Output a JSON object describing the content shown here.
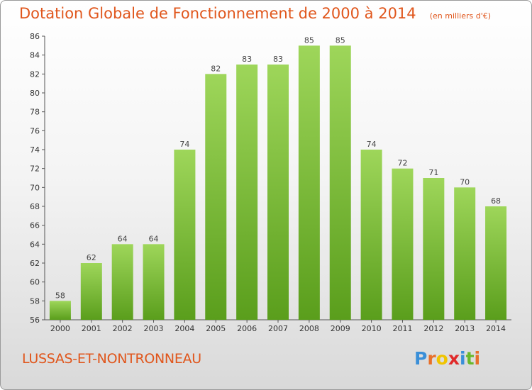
{
  "chart_data": {
    "type": "bar",
    "title": "Dotation Globale de Fonctionnement de 2000 à 2014",
    "unit": "(en milliers d'€)",
    "categories": [
      "2000",
      "2001",
      "2002",
      "2003",
      "2004",
      "2005",
      "2006",
      "2007",
      "2008",
      "2009",
      "2010",
      "2011",
      "2012",
      "2013",
      "2014"
    ],
    "values": [
      58,
      62,
      64,
      64,
      74,
      82,
      83,
      83,
      85,
      85,
      74,
      72,
      71,
      70,
      68
    ],
    "data_labels": [
      "58",
      "62",
      "64",
      "64",
      "74",
      "82",
      "83",
      "83",
      "85",
      "85",
      "74",
      "72",
      "71",
      "70",
      "68"
    ],
    "ylim": [
      56,
      86
    ],
    "yticks": [
      "56",
      "58",
      "60",
      "62",
      "64",
      "66",
      "68",
      "70",
      "72",
      "74",
      "76",
      "78",
      "80",
      "82",
      "84",
      "86"
    ],
    "grid": false,
    "colors": {
      "bar_light": "#9ed65a",
      "bar_dark": "#5a9e1c",
      "title": "#e0561c"
    }
  },
  "footer": {
    "commune": "LUSSAS-ET-NONTRONNEAU",
    "logo_letters": [
      "P",
      "r",
      "o",
      "x",
      "i",
      "t",
      "i"
    ],
    "logo_colors": [
      "#3a8fd8",
      "#e8702a",
      "#f0c400",
      "#e02a2a",
      "#3a8fd8",
      "#6ab82a",
      "#e8702a"
    ]
  }
}
